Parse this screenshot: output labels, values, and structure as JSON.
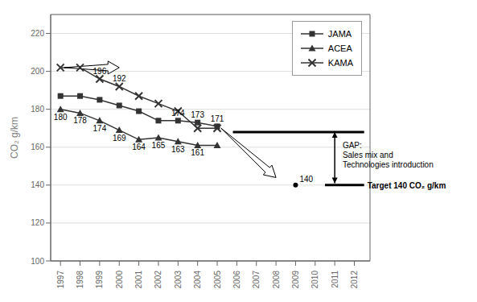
{
  "chart_data": {
    "type": "line",
    "y_label": "CO₂ g/km",
    "x": [
      1997,
      1998,
      1999,
      2000,
      2001,
      2002,
      2003,
      2004,
      2005
    ],
    "xlim": [
      1996.5,
      2012.8
    ],
    "xticks": [
      1997,
      1998,
      1999,
      2000,
      2001,
      2002,
      2003,
      2004,
      2005,
      2006,
      2007,
      2008,
      2009,
      2010,
      2011,
      2012
    ],
    "ylim": [
      100,
      230
    ],
    "yticks": [
      100,
      120,
      140,
      160,
      180,
      200,
      220
    ],
    "grid": true,
    "legend": "upper right",
    "series": [
      {
        "name": "JAMA",
        "color": "#333333",
        "marker": "square",
        "values": [
          187,
          187,
          185,
          182,
          179,
          174,
          174,
          173,
          171
        ],
        "value_labels": [
          null,
          null,
          null,
          null,
          null,
          null,
          "174",
          "173",
          "171"
        ]
      },
      {
        "name": "ACEA",
        "color": "#333333",
        "marker": "triangle",
        "values": [
          180,
          178,
          174,
          169,
          164,
          165,
          163,
          161,
          161
        ],
        "value_labels": [
          "180",
          "178",
          "174",
          "169",
          "164",
          "165",
          "163",
          "161",
          null
        ]
      },
      {
        "name": "KAMA",
        "color": "#333333",
        "marker": "x",
        "values": [
          202,
          202,
          196,
          192,
          187,
          183,
          179,
          170,
          170
        ],
        "value_labels": [
          null,
          null,
          "196",
          "192",
          null,
          null,
          null,
          null,
          null
        ]
      }
    ],
    "hlines": [
      {
        "y": 168,
        "x": [
          2005.8,
          2012.5
        ]
      },
      {
        "y": 140,
        "x": [
          2010.5,
          2012.5
        ]
      }
    ],
    "points": [
      {
        "x": 2009,
        "y": 140,
        "label": "140"
      }
    ],
    "double_arrows": [
      {
        "x": [
          2011,
          2011
        ],
        "y": [
          168,
          141
        ]
      }
    ],
    "arrows": [
      {
        "x": [
          2005.2,
          2008.0
        ],
        "y": [
          170,
          144
        ]
      },
      {
        "x": [
          1997.2,
          2000
        ],
        "y": [
          202,
          202
        ]
      }
    ],
    "annotations": [
      {
        "text": "Target 140 CO₂ g/km",
        "x": 2012.5,
        "y": 140,
        "bold": true
      },
      {
        "text": "GAP:\nSales mix and\nTechnologies introduction",
        "x": 2011.4,
        "y": 156
      }
    ]
  }
}
